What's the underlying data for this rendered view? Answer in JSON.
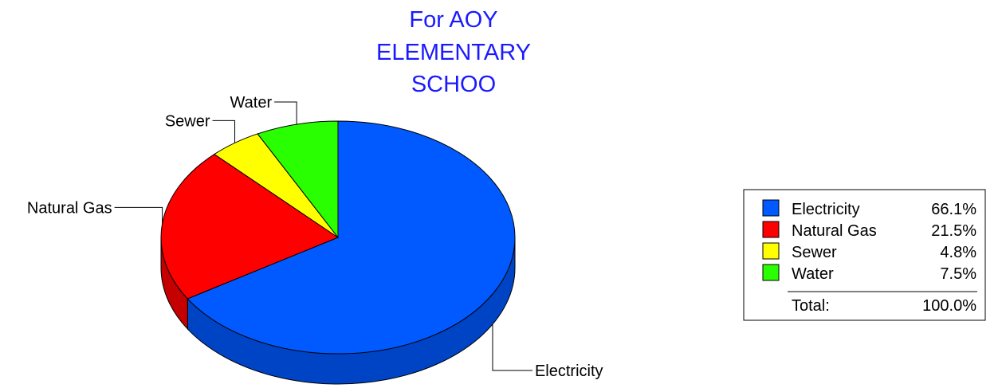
{
  "chart_data": {
    "type": "pie",
    "title_lines": [
      "For AOY",
      "ELEMENTARY",
      "SCHOO"
    ],
    "title_color": "#1a1aff",
    "slices": [
      {
        "label": "Electricity",
        "value": 66.1,
        "value_text": "66.1%",
        "color": "#005aff",
        "side_color": "#0044c6"
      },
      {
        "label": "Natural Gas",
        "value": 21.5,
        "value_text": "21.5%",
        "color": "#ff0000",
        "side_color": "#c40000"
      },
      {
        "label": "Sewer",
        "value": 4.8,
        "value_text": "4.8%",
        "color": "#ffff00",
        "side_color": "#c8c800"
      },
      {
        "label": "Water",
        "value": 7.5,
        "value_text": "7.5%",
        "color": "#29ff00",
        "side_color": "#1fc400"
      }
    ],
    "total_label": "Total:",
    "total_value": "100.0%",
    "legend_position": "right",
    "start": "12-o'clock",
    "direction": "clockwise",
    "style": "3d"
  }
}
